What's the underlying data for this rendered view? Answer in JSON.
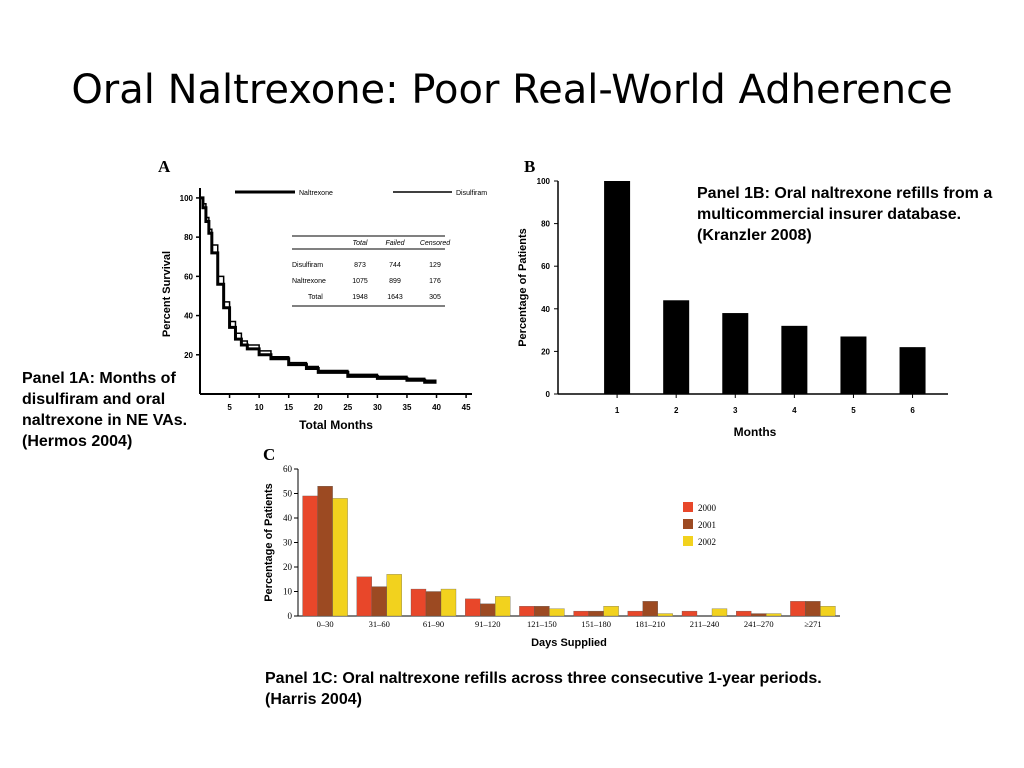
{
  "slide": {
    "title": "Oral Naltrexone: Poor Real-World Adherence"
  },
  "captions": {
    "a": "Panel 1A: Months of disulfiram and oral naltrexone in NE VAs. (Hermos 2004)",
    "b": "Panel 1B: Oral naltrexone refills from a multicommercial insurer database. (Kranzler 2008)",
    "c": "Panel 1C: Oral naltrexone refills across three consecutive 1-year periods. (Harris 2004)"
  },
  "chart_data": [
    {
      "panel": "A",
      "type": "line",
      "xlabel": "Total Months",
      "ylabel": "Percent  Survival",
      "xticks": [
        5,
        10,
        15,
        20,
        25,
        30,
        35,
        40,
        45
      ],
      "yticks": [
        20,
        40,
        60,
        80,
        100
      ],
      "xlim": [
        0,
        46
      ],
      "ylim": [
        0,
        102
      ],
      "legend": {
        "placement": "top",
        "entries": [
          "Naltrexone",
          "Disulfiram"
        ]
      },
      "series": [
        {
          "name": "Naltrexone",
          "x": [
            0,
            0.5,
            1,
            1.5,
            2,
            3,
            4,
            5,
            6,
            7,
            8,
            10,
            12,
            15,
            18,
            20,
            25,
            30,
            35,
            38,
            40
          ],
          "y": [
            100,
            95,
            88,
            82,
            72,
            56,
            44,
            34,
            28,
            25,
            23,
            20,
            18,
            15,
            13,
            11,
            9,
            8,
            7,
            6,
            6
          ]
        },
        {
          "name": "Disulfiram",
          "x": [
            0,
            0.5,
            1,
            1.5,
            2,
            3,
            4,
            5,
            6,
            7,
            8,
            10,
            12,
            15,
            18,
            20,
            25,
            30,
            35,
            38,
            40
          ],
          "y": [
            100,
            97,
            90,
            84,
            76,
            60,
            47,
            37,
            31,
            27,
            25,
            22,
            19,
            16,
            14,
            12,
            10,
            9,
            8,
            7,
            7
          ]
        }
      ],
      "table": {
        "headers": [
          "",
          "Total",
          "Failed",
          "Censored"
        ],
        "rows": [
          [
            "Disulfiram",
            "873",
            "744",
            "129"
          ],
          [
            "Naltrexone",
            "1075",
            "899",
            "176"
          ],
          [
            "Total",
            "1948",
            "1643",
            "305"
          ]
        ]
      }
    },
    {
      "panel": "B",
      "type": "bar",
      "xlabel": "Months",
      "ylabel": "Percentage of Patients",
      "categories": [
        "1",
        "2",
        "3",
        "4",
        "5",
        "6"
      ],
      "values": [
        100,
        44,
        38,
        32,
        27,
        22
      ],
      "yticks": [
        0,
        20,
        40,
        60,
        80,
        100
      ],
      "ylim": [
        0,
        100
      ],
      "color": "#000000"
    },
    {
      "panel": "C",
      "type": "bar",
      "xlabel": "Days Supplied",
      "ylabel": "Percentage of Patients",
      "categories": [
        "0–30",
        "31–60",
        "61–90",
        "91–120",
        "121–150",
        "151–180",
        "181–210",
        "211–240",
        "241–270",
        "≥271"
      ],
      "yticks": [
        0,
        10,
        20,
        30,
        40,
        50,
        60
      ],
      "ylim": [
        0,
        60
      ],
      "legend": {
        "placement": "right"
      },
      "series": [
        {
          "name": "2000",
          "color": "#e8472a",
          "values": [
            49,
            16,
            11,
            7,
            4,
            2,
            2,
            2,
            2,
            6
          ]
        },
        {
          "name": "2001",
          "color": "#9c4a22",
          "values": [
            53,
            12,
            10,
            5,
            4,
            2,
            6,
            0,
            1,
            6
          ]
        },
        {
          "name": "2002",
          "color": "#f2d21e",
          "values": [
            48,
            17,
            11,
            8,
            3,
            4,
            1,
            3,
            1,
            4
          ]
        }
      ]
    }
  ]
}
